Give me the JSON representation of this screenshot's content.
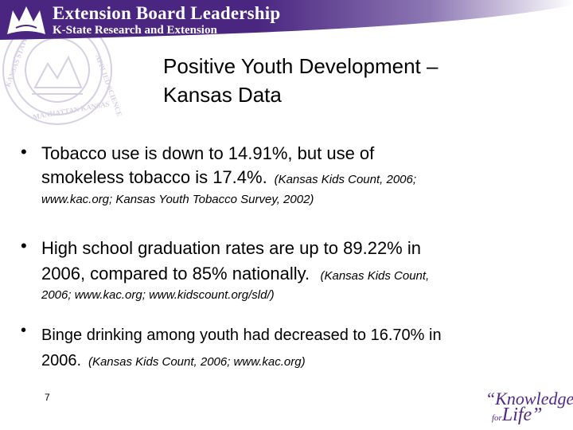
{
  "header": {
    "title": "Extension Board Leadership",
    "subtitle": "K-State Research and Extension",
    "band_color": "#4a2680",
    "accent_color": "#ffffff"
  },
  "icons": {
    "logo": "wildcat-logo-icon",
    "seal": "university-seal-icon"
  },
  "slide": {
    "title_lines": [
      "Positive Youth Development –",
      "Kansas Data"
    ],
    "bullets": [
      {
        "line1": "Tobacco use is down to 14.91%, but use of",
        "line2_main": "smokeless tobacco is 17.4%.",
        "line2_cite": "(Kansas Kids Count, 2006;",
        "line3_cite": "www.kac.org; Kansas Youth Tobacco Survey, 2002)"
      },
      {
        "line1": "High school graduation rates are up to 89.22% in",
        "line2_main": "2006, compared to 85% nationally",
        "line2_sep": ".",
        "line2_cite": "(Kansas Kids Count,",
        "line3_cite": "2006; www.kac.org; www.kidscount.org/sld/)"
      },
      {
        "line1": "Binge drinking among youth had decreased to 16.70% in",
        "line2_main": "2006",
        "line2_sep": ".",
        "line2_cite": "(Kansas Kids Count, 2006; www.kac.org)"
      }
    ],
    "bullet_symbol": "•",
    "page_number": "7"
  },
  "branding": {
    "line1": "“Knowledge",
    "for_text": "for",
    "life_text": "Life”",
    "color": "#512888"
  }
}
